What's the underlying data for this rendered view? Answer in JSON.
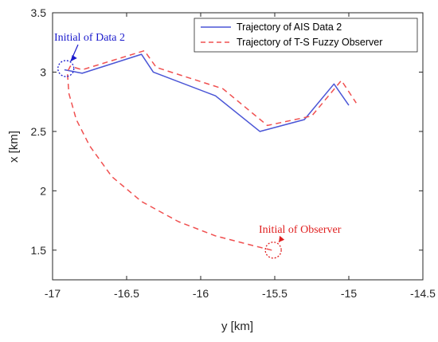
{
  "chart_data": {
    "type": "line",
    "xlabel": "y [km]",
    "ylabel": "x [km]",
    "xlim": [
      -17,
      -14.5
    ],
    "ylim": [
      1.25,
      3.5
    ],
    "xticks": [
      -17,
      -16.5,
      -16,
      -15.5,
      -15,
      -14.5
    ],
    "yticks": [
      1.5,
      2,
      2.5,
      3,
      3.5
    ],
    "xtick_labels": [
      "-17",
      "-16.5",
      "-16",
      "-15.5",
      "-15",
      "-14.5"
    ],
    "ytick_labels": [
      "1.5",
      "2",
      "2.5",
      "3",
      "3.5"
    ],
    "grid": false,
    "legend_position": "top-right",
    "series": [
      {
        "name": "Trajectory of AIS Data 2",
        "color": "#4a55d6",
        "style": "solid",
        "points": [
          [
            -16.92,
            3.02
          ],
          [
            -16.8,
            2.99
          ],
          [
            -16.4,
            3.15
          ],
          [
            -16.32,
            3.0
          ],
          [
            -15.9,
            2.8
          ],
          [
            -15.6,
            2.5
          ],
          [
            -15.3,
            2.6
          ],
          [
            -15.1,
            2.9
          ],
          [
            -15.0,
            2.72
          ]
        ]
      },
      {
        "name": "Trajectory of T-S Fuzzy Observer",
        "color": "#f05050",
        "style": "dashed",
        "points": [
          [
            -15.52,
            1.5
          ],
          [
            -15.62,
            1.53
          ],
          [
            -15.9,
            1.62
          ],
          [
            -16.15,
            1.74
          ],
          [
            -16.4,
            1.91
          ],
          [
            -16.6,
            2.12
          ],
          [
            -16.75,
            2.38
          ],
          [
            -16.84,
            2.6
          ],
          [
            -16.89,
            2.82
          ],
          [
            -16.9,
            3.0
          ],
          [
            -16.88,
            3.05
          ],
          [
            -16.8,
            3.02
          ],
          [
            -16.38,
            3.18
          ],
          [
            -16.3,
            3.04
          ],
          [
            -15.85,
            2.86
          ],
          [
            -15.55,
            2.55
          ],
          [
            -15.25,
            2.63
          ],
          [
            -15.05,
            2.93
          ],
          [
            -14.95,
            2.74
          ]
        ]
      }
    ],
    "annotations": [
      {
        "text": "Initial of Data 2",
        "color": "#1a1acc",
        "target": [
          -16.91,
          3.03
        ]
      },
      {
        "text": "Initial of Observer",
        "color": "#e02020",
        "target": [
          -15.51,
          1.5
        ]
      }
    ]
  }
}
